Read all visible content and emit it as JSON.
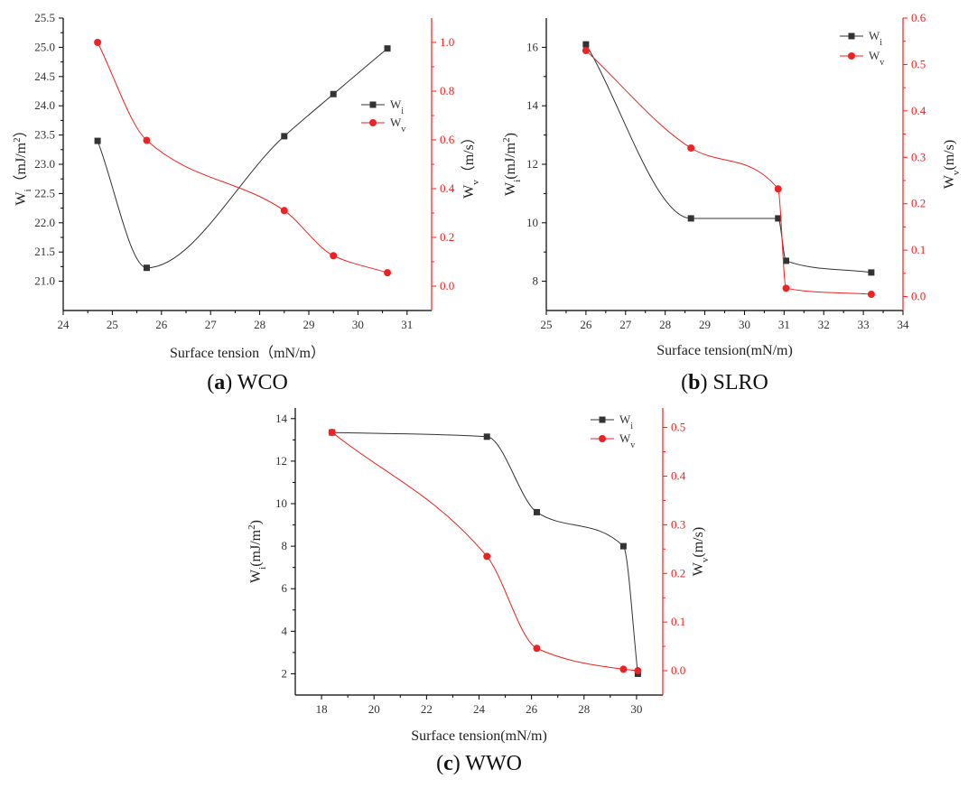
{
  "chart_data": [
    {
      "panel": "a",
      "type": "line",
      "caption_letter": "a",
      "caption_text": " WCO",
      "xlabel": "Surface tension（mN/m）",
      "xlim": [
        24,
        31.5
      ],
      "xticks": [
        24,
        25,
        26,
        27,
        28,
        29,
        30,
        31
      ],
      "left_axis": {
        "label_main": "W",
        "label_sub": "i",
        "label_rest": "（mJ/m",
        "label_sup": "2",
        "label_end": "）",
        "lim": [
          20.5,
          25.5
        ],
        "ticks": [
          21.0,
          21.5,
          22.0,
          22.5,
          23.0,
          23.5,
          24.0,
          24.5,
          25.0,
          25.5
        ],
        "decimals": 1
      },
      "right_axis": {
        "label_main": "W",
        "label_sub": "v",
        "label_rest": "（m/s）",
        "lim": [
          -0.1,
          1.1
        ],
        "ticks": [
          0.0,
          0.2,
          0.4,
          0.6,
          0.8,
          1.0
        ],
        "decimals": 1
      },
      "series": [
        {
          "name": "W",
          "sub": "i",
          "axis": "left",
          "color": "#333333",
          "marker": "square",
          "x": [
            24.7,
            25.7,
            28.5,
            29.5,
            30.6
          ],
          "y": [
            23.4,
            21.23,
            23.48,
            24.2,
            24.98
          ]
        },
        {
          "name": "W",
          "sub": "v",
          "axis": "right",
          "color": "#ee2222",
          "marker": "circle",
          "x": [
            24.7,
            25.7,
            28.5,
            29.5,
            30.6
          ],
          "y": [
            1.0,
            0.598,
            0.31,
            0.125,
            0.055
          ]
        }
      ]
    },
    {
      "panel": "b",
      "type": "line",
      "caption_letter": "b",
      "caption_text": " SLRO",
      "xlabel": "Surface tension(mN/m)",
      "xlim": [
        25,
        34
      ],
      "xticks": [
        25,
        26,
        27,
        28,
        29,
        30,
        31,
        32,
        33,
        34
      ],
      "left_axis": {
        "label_main": "W",
        "label_sub": "i",
        "label_rest": "(mJ/m",
        "label_sup": "2",
        "label_end": ")",
        "lim": [
          7,
          17
        ],
        "ticks": [
          8,
          10,
          12,
          14,
          16
        ],
        "decimals": 0
      },
      "right_axis": {
        "label_main": "W",
        "label_sub": "v",
        "label_rest": "(m/s)",
        "lim": [
          -0.03,
          0.6
        ],
        "ticks": [
          0.0,
          0.1,
          0.2,
          0.3,
          0.4,
          0.5,
          0.6
        ],
        "decimals": 1
      },
      "series": [
        {
          "name": "W",
          "sub": "i",
          "axis": "left",
          "color": "#333333",
          "marker": "square",
          "x": [
            26.0,
            28.65,
            30.85,
            31.05,
            33.2
          ],
          "y": [
            16.1,
            10.15,
            10.15,
            8.7,
            8.3
          ]
        },
        {
          "name": "W",
          "sub": "v",
          "axis": "right",
          "color": "#ee2222",
          "marker": "circle",
          "x": [
            26.0,
            28.65,
            30.85,
            31.05,
            33.2
          ],
          "y": [
            0.53,
            0.32,
            0.232,
            0.018,
            0.005
          ]
        }
      ]
    },
    {
      "panel": "c",
      "type": "line",
      "caption_letter": "c",
      "caption_text": " WWO",
      "xlabel": "Surface tension(mN/m)",
      "xlim": [
        17,
        31
      ],
      "xticks": [
        18,
        20,
        22,
        24,
        26,
        28,
        30
      ],
      "left_axis": {
        "label_main": "W",
        "label_sub": "i",
        "label_rest": "(mJ/m",
        "label_sup": "2",
        "label_end": ")",
        "lim": [
          1.0,
          14.5
        ],
        "ticks": [
          2,
          4,
          6,
          8,
          10,
          12,
          14
        ],
        "decimals": 0
      },
      "right_axis": {
        "label_main": "W",
        "label_sub": "v",
        "label_rest": "(m/s)",
        "lim": [
          -0.05,
          0.54
        ],
        "ticks": [
          0.0,
          0.1,
          0.2,
          0.3,
          0.4,
          0.5
        ],
        "decimals": 1
      },
      "series": [
        {
          "name": "W",
          "sub": "i",
          "axis": "left",
          "color": "#333333",
          "marker": "square",
          "x": [
            18.4,
            24.3,
            26.2,
            29.5,
            30.05
          ],
          "y": [
            13.35,
            13.15,
            9.6,
            8.0,
            2.0
          ]
        },
        {
          "name": "W",
          "sub": "v",
          "axis": "right",
          "color": "#ee2222",
          "marker": "circle",
          "x": [
            18.4,
            24.3,
            26.2,
            29.5,
            30.05
          ],
          "y": [
            0.49,
            0.235,
            0.046,
            0.003,
            0.0
          ]
        }
      ]
    }
  ]
}
